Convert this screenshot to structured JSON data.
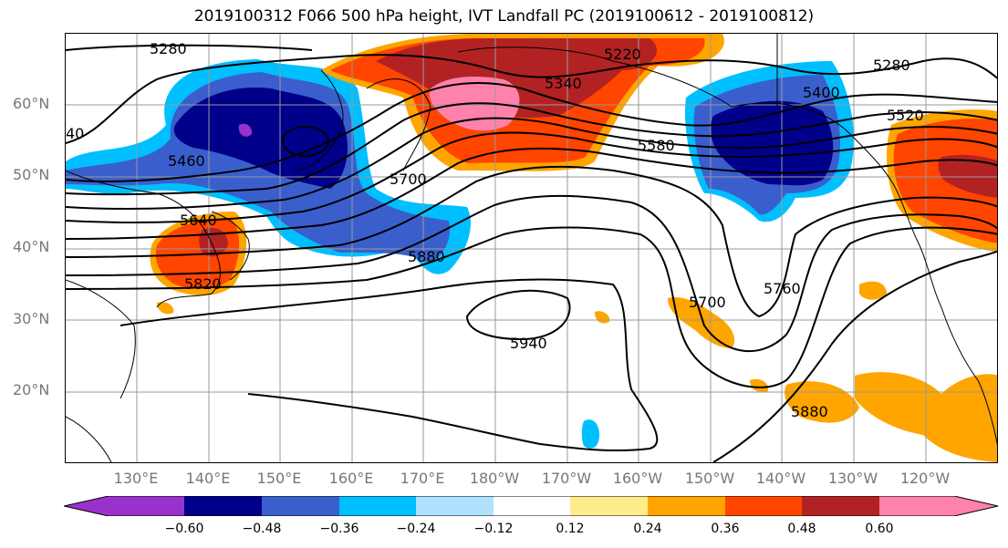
{
  "title": "2019100312 F066 500 hPa height, IVT Landfall PC (2019100612 - 2019100812)",
  "lat_labels": [
    "60°N",
    "50°N",
    "40°N",
    "30°N",
    "20°N"
  ],
  "lon_labels": [
    "130°E",
    "140°E",
    "150°E",
    "160°E",
    "170°E",
    "180°W",
    "170°W",
    "160°W",
    "150°W",
    "140°W",
    "130°W",
    "120°W"
  ],
  "contour_labels": [
    "5280",
    "5280",
    "5220",
    "5340",
    "5400",
    "5520",
    "5460",
    "5580",
    "5700",
    "5640",
    "5820",
    "5880",
    "5700",
    "5760",
    "5940",
    "5880",
    "40"
  ],
  "colorbar": {
    "ticks": [
      "−0.60",
      "−0.48",
      "−0.36",
      "−0.24",
      "−0.12",
      "0.12",
      "0.24",
      "0.36",
      "0.48",
      "0.60"
    ],
    "colors": [
      "#9932cc",
      "#00008b",
      "#3a5fcd",
      "#00bfff",
      "#b0e2ff",
      "#ffffff",
      "#ffec8b",
      "#ffa500",
      "#ff4500",
      "#b22222",
      "#ff82ab"
    ]
  }
}
